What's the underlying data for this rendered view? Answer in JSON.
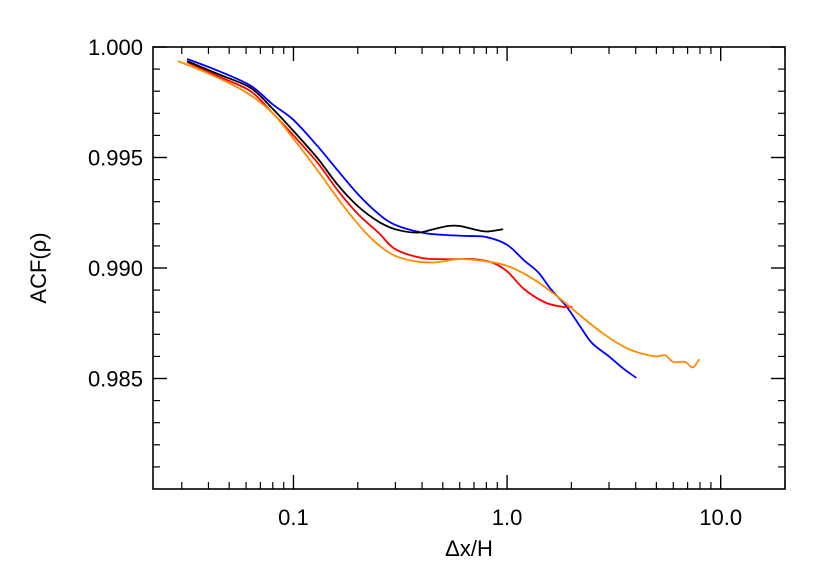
{
  "chart_data": {
    "type": "line",
    "xlabel": "Δx/H",
    "ylabel": "ACF(ρ)",
    "xscale": "log",
    "xlim": [
      0.022,
      20.0
    ],
    "ylim": [
      0.98,
      1.0
    ],
    "x_ticks": [
      0.1,
      1.0,
      10.0
    ],
    "x_tick_labels": [
      "0.1",
      "1.0",
      "10.0"
    ],
    "y_ticks": [
      0.985,
      0.99,
      0.995,
      1.0
    ],
    "y_tick_labels": [
      "0.985",
      "0.990",
      "0.995",
      "1.000"
    ],
    "grid": false,
    "legend": "none",
    "series": [
      {
        "color": "#000000",
        "x": [
          0.032,
          0.045,
          0.063,
          0.08,
          0.1,
          0.13,
          0.16,
          0.2,
          0.25,
          0.3,
          0.38,
          0.45,
          0.53,
          0.6,
          0.7,
          0.8,
          0.95
        ],
        "y": [
          0.99935,
          0.99875,
          0.99815,
          0.9972,
          0.9962,
          0.99495,
          0.9938,
          0.9928,
          0.9921,
          0.99175,
          0.9916,
          0.99175,
          0.9919,
          0.9919,
          0.99175,
          0.99165,
          0.99175
        ]
      },
      {
        "color": "#0000ff",
        "x": [
          0.032,
          0.045,
          0.063,
          0.08,
          0.1,
          0.13,
          0.16,
          0.2,
          0.25,
          0.3,
          0.4,
          0.5,
          0.65,
          0.8,
          1.0,
          1.2,
          1.4,
          1.6,
          1.9,
          2.2,
          2.5,
          3.0,
          3.5,
          4.0
        ],
        "y": [
          0.99945,
          0.9989,
          0.99825,
          0.9974,
          0.9967,
          0.9955,
          0.99445,
          0.99335,
          0.99245,
          0.99195,
          0.9916,
          0.9915,
          0.99145,
          0.9914,
          0.99105,
          0.99035,
          0.9898,
          0.98905,
          0.98825,
          0.98735,
          0.9866,
          0.986,
          0.98545,
          0.98505
        ]
      },
      {
        "color": "#ff0000",
        "x": [
          0.032,
          0.045,
          0.063,
          0.08,
          0.1,
          0.13,
          0.16,
          0.2,
          0.25,
          0.3,
          0.4,
          0.5,
          0.6,
          0.7,
          0.85,
          1.0,
          1.2,
          1.5,
          1.8,
          2.0
        ],
        "y": [
          0.9993,
          0.99865,
          0.998,
          0.997,
          0.996,
          0.99475,
          0.99355,
          0.99245,
          0.9916,
          0.99085,
          0.99045,
          0.9904,
          0.9904,
          0.9904,
          0.99025,
          0.98985,
          0.98905,
          0.98845,
          0.98825,
          0.98825
        ]
      },
      {
        "color": "#ff8c00",
        "x": [
          0.029,
          0.04,
          0.06,
          0.08,
          0.1,
          0.13,
          0.17,
          0.22,
          0.28,
          0.35,
          0.45,
          0.6,
          0.8,
          1.0,
          1.3,
          1.7,
          2.2,
          2.8,
          3.5,
          4.2,
          5.0,
          5.5,
          6.0,
          6.8,
          7.4,
          7.9
        ],
        "y": [
          0.99935,
          0.9988,
          0.99795,
          0.997,
          0.99585,
          0.9944,
          0.99285,
          0.99155,
          0.9907,
          0.99035,
          0.99025,
          0.9904,
          0.9903,
          0.9901,
          0.98955,
          0.98875,
          0.98785,
          0.98705,
          0.98645,
          0.98615,
          0.986,
          0.98605,
          0.98575,
          0.98575,
          0.9855,
          0.98585
        ]
      }
    ]
  }
}
